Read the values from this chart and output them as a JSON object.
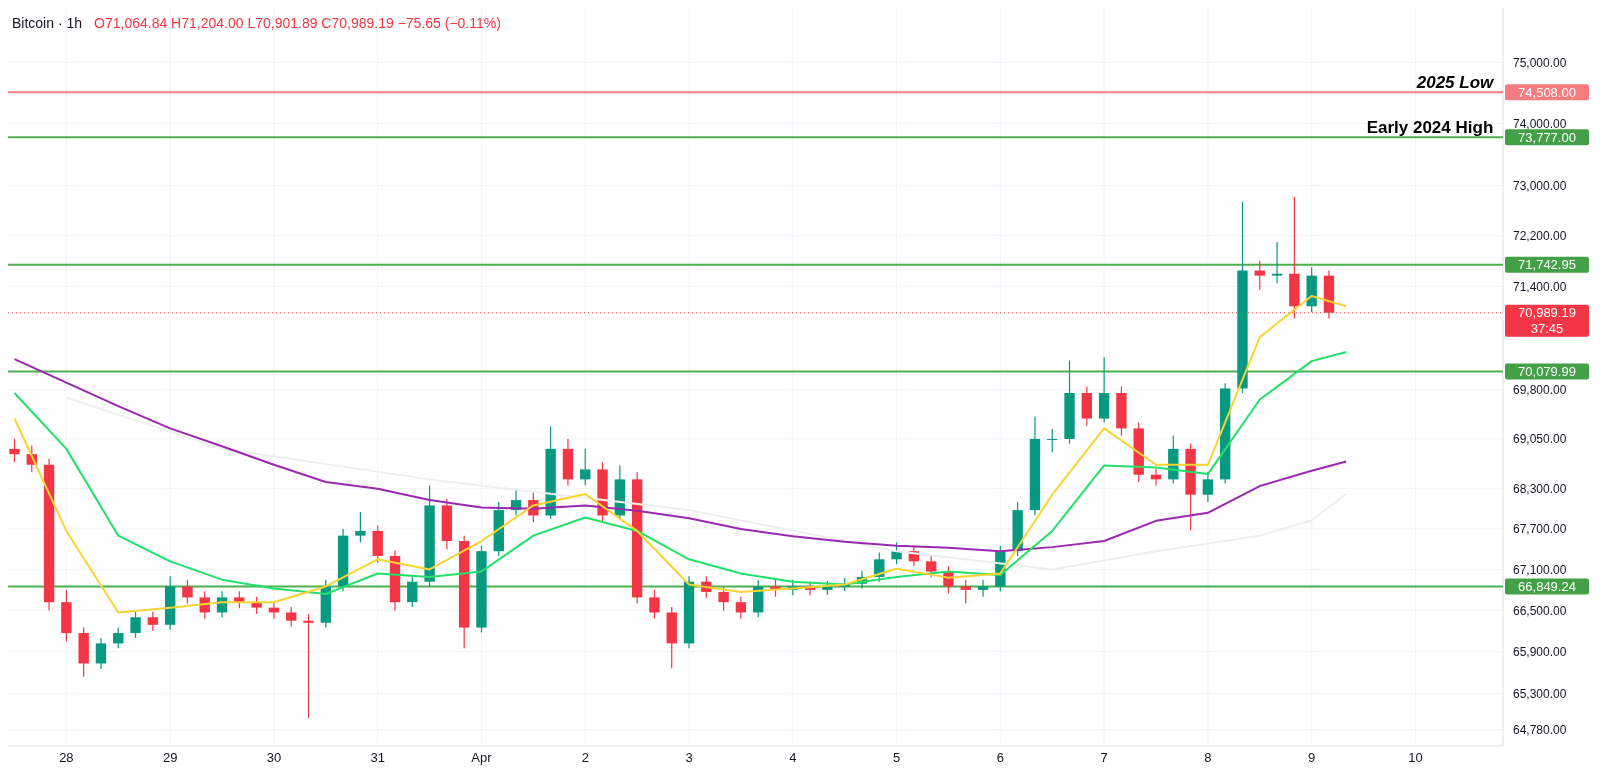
{
  "chart_data": {
    "type": "candlestick",
    "title": "Bitcoin · 1h",
    "subtitle": "O71,064.84 H71,204.00 L70,901.89 C70,989.19 −75.65 (−0.11%)",
    "xlim": [
      "--03-27T10:30",
      "--04-10T20:15"
    ],
    "xticks": [
      {
        "value": "--03-28",
        "label": "28"
      },
      {
        "value": "--03-29",
        "label": "29"
      },
      {
        "value": "--03-30",
        "label": "30"
      },
      {
        "value": "--03-31",
        "label": "31"
      },
      {
        "value": "--04-01",
        "label": "Apr"
      },
      {
        "value": "--04-02",
        "label": "2"
      },
      {
        "value": "--04-03",
        "label": "3"
      },
      {
        "value": "--04-04",
        "label": "4"
      },
      {
        "value": "--04-05",
        "label": "5"
      },
      {
        "value": "--04-06",
        "label": "6"
      },
      {
        "value": "--04-07",
        "label": "7"
      },
      {
        "value": "--04-08",
        "label": "8"
      },
      {
        "value": "--04-09",
        "label": "9"
      },
      {
        "value": "--04-10",
        "label": "10"
      }
    ],
    "ylim": [
      64550,
      75900
    ],
    "log": true,
    "grid": true,
    "yticks": [
      {
        "value": 64780,
        "label": "64,780.00"
      },
      {
        "value": 65300,
        "label": "65,300.00"
      },
      {
        "value": 65900,
        "label": "65,900.00"
      },
      {
        "value": 66500,
        "label": "66,500.00"
      },
      {
        "value": 67100,
        "label": "67,100.00"
      },
      {
        "value": 67700,
        "label": "67,700.00"
      },
      {
        "value": 68300,
        "label": "68,300.00"
      },
      {
        "value": 69050,
        "label": "69,050.00"
      },
      {
        "value": 69800,
        "label": "69,800.00"
      },
      {
        "value": 71400,
        "label": "71,400.00"
      },
      {
        "value": 72200,
        "label": "72,200.00"
      },
      {
        "value": 73000,
        "label": "73,000.00"
      },
      {
        "value": 74000,
        "label": "74,000.00"
      },
      {
        "value": 75000,
        "label": "75,000.00"
      }
    ],
    "series": [
      {
        "x": [
          "--03-27T12:00",
          "--03-27T16:00",
          "--03-27T20:00",
          "--03-28T00:00",
          "--03-28T04:00",
          "--03-28T08:00",
          "--03-28T12:00",
          "--03-28T16:00",
          "--03-28T20:00",
          "--03-29T00:00",
          "--03-29T04:00",
          "--03-29T08:00",
          "--03-29T12:00",
          "--03-29T16:00",
          "--03-29T20:00",
          "--03-30T00:00",
          "--03-30T04:00",
          "--03-30T08:00",
          "--03-30T12:00",
          "--03-30T16:00",
          "--03-30T20:00",
          "--03-31T00:00",
          "--03-31T04:00",
          "--03-31T08:00",
          "--03-31T12:00",
          "--03-31T16:00",
          "--03-31T20:00",
          "--04-01T00:00",
          "--04-01T04:00",
          "--04-01T08:00",
          "--04-01T12:00",
          "--04-01T16:00",
          "--04-01T20:00",
          "--04-02T00:00",
          "--04-02T04:00",
          "--04-02T08:00",
          "--04-02T12:00",
          "--04-02T16:00",
          "--04-02T20:00",
          "--04-03T00:00",
          "--04-03T04:00",
          "--04-03T08:00",
          "--04-03T12:00",
          "--04-03T16:00",
          "--04-03T20:00",
          "--04-04T00:00",
          "--04-04T04:00",
          "--04-04T08:00",
          "--04-04T12:00",
          "--04-04T16:00",
          "--04-04T20:00",
          "--04-05T00:00",
          "--04-05T04:00",
          "--04-05T08:00",
          "--04-05T12:00",
          "--04-05T16:00",
          "--04-05T20:00",
          "--04-06T00:00",
          "--04-06T04:00",
          "--04-06T08:00",
          "--04-06T12:00",
          "--04-06T16:00",
          "--04-06T20:00",
          "--04-07T00:00",
          "--04-07T04:00",
          "--04-07T08:00",
          "--04-07T12:00",
          "--04-07T16:00",
          "--04-07T20:00",
          "--04-08T00:00",
          "--04-08T04:00",
          "--04-08T08:00",
          "--04-08T12:00",
          "--04-08T16:00",
          "--04-08T20:00",
          "--04-09T00:00",
          "--04-09T04:00"
        ],
        "ohlc": [
          [
            68900,
            69050,
            68700,
            68820
          ],
          [
            68820,
            68950,
            68550,
            68660
          ],
          [
            68660,
            68750,
            66500,
            66620
          ],
          [
            66620,
            66800,
            66050,
            66170
          ],
          [
            66170,
            66250,
            65540,
            65730
          ],
          [
            65730,
            66100,
            65650,
            66020
          ],
          [
            66020,
            66250,
            65950,
            66170
          ],
          [
            66170,
            66480,
            66100,
            66400
          ],
          [
            66400,
            66480,
            66200,
            66290
          ],
          [
            66290,
            67000,
            66220,
            66850
          ],
          [
            66850,
            66950,
            66600,
            66690
          ],
          [
            66690,
            66780,
            66380,
            66470
          ],
          [
            66470,
            66780,
            66400,
            66690
          ],
          [
            66690,
            66780,
            66530,
            66620
          ],
          [
            66620,
            66700,
            66450,
            66540
          ],
          [
            66540,
            66620,
            66380,
            66470
          ],
          [
            66470,
            66550,
            66260,
            66350
          ],
          [
            66350,
            66450,
            64950,
            66320
          ],
          [
            66320,
            66950,
            66250,
            66850
          ],
          [
            66850,
            67700,
            66780,
            67600
          ],
          [
            67600,
            67950,
            67500,
            67670
          ],
          [
            67670,
            67750,
            67200,
            67300
          ],
          [
            67300,
            67380,
            66500,
            66620
          ],
          [
            66620,
            67000,
            66550,
            66920
          ],
          [
            66920,
            68350,
            66850,
            68050
          ],
          [
            68050,
            68150,
            67400,
            67520
          ],
          [
            67520,
            67600,
            65950,
            66250
          ],
          [
            66250,
            67450,
            66180,
            67370
          ],
          [
            67370,
            68100,
            67300,
            67980
          ],
          [
            67980,
            68300,
            67900,
            68130
          ],
          [
            68130,
            68250,
            67800,
            67900
          ],
          [
            67900,
            69240,
            67850,
            68900
          ],
          [
            68900,
            69050,
            68350,
            68440
          ],
          [
            68440,
            68900,
            68350,
            68590
          ],
          [
            68590,
            68700,
            67800,
            67900
          ],
          [
            67900,
            68650,
            67850,
            68440
          ],
          [
            68440,
            68550,
            66600,
            66690
          ],
          [
            66690,
            66800,
            66380,
            66470
          ],
          [
            66470,
            66550,
            65660,
            66020
          ],
          [
            66020,
            67000,
            65950,
            66920
          ],
          [
            66920,
            67000,
            66680,
            66770
          ],
          [
            66770,
            66850,
            66500,
            66620
          ],
          [
            66620,
            66700,
            66380,
            66470
          ],
          [
            66470,
            66950,
            66400,
            66850
          ],
          [
            66850,
            66950,
            66700,
            66800
          ],
          [
            66800,
            66950,
            66720,
            66850
          ],
          [
            66850,
            66920,
            66720,
            66800
          ],
          [
            66800,
            66930,
            66730,
            66850
          ],
          [
            66850,
            66980,
            66780,
            66890
          ],
          [
            66890,
            67080,
            66820,
            66990
          ],
          [
            66990,
            67350,
            66920,
            67250
          ],
          [
            67250,
            67500,
            67180,
            67370
          ],
          [
            67370,
            67450,
            67150,
            67220
          ],
          [
            67220,
            67300,
            66990,
            67070
          ],
          [
            67070,
            67150,
            66750,
            66850
          ],
          [
            66850,
            66950,
            66600,
            66800
          ],
          [
            66800,
            66950,
            66700,
            66850
          ],
          [
            66850,
            67450,
            66780,
            67370
          ],
          [
            67370,
            68100,
            67300,
            67980
          ],
          [
            67980,
            69390,
            67900,
            69050
          ],
          [
            69050,
            69200,
            68850,
            69050
          ],
          [
            69050,
            70250,
            68980,
            69750
          ],
          [
            69750,
            69850,
            69250,
            69360
          ],
          [
            69360,
            70300,
            69300,
            69750
          ],
          [
            69750,
            69850,
            69100,
            69210
          ],
          [
            69210,
            69300,
            68400,
            68510
          ],
          [
            68510,
            68600,
            68350,
            68440
          ],
          [
            68440,
            69100,
            68380,
            68900
          ],
          [
            68900,
            68980,
            67680,
            68210
          ],
          [
            68210,
            68550,
            68100,
            68440
          ],
          [
            68440,
            69900,
            68380,
            69820
          ],
          [
            69820,
            72740,
            69750,
            71650
          ],
          [
            71650,
            71800,
            71350,
            71570
          ],
          [
            71570,
            72100,
            71450,
            71600
          ],
          [
            71600,
            72820,
            70900,
            71090
          ],
          [
            71090,
            71700,
            71000,
            71570
          ],
          [
            71570,
            71650,
            70900,
            70990
          ]
        ]
      },
      {
        "type": "line",
        "color": "#eeeeee",
        "x": [
          "--03-28T00:00",
          "--03-29T12:00",
          "--03-31T12:00",
          "--04-03T00:00",
          "--04-05T00:00",
          "--04-06T12:00",
          "--04-07T12:00",
          "--04-08T12:00",
          "--04-09T00:00",
          "--04-09T08:00"
        ],
        "values": [
          69680,
          68900,
          68440,
          67980,
          67370,
          67100,
          67370,
          67600,
          67830,
          68220
        ]
      },
      {
        "type": "line",
        "color": "#9c27b0",
        "x": [
          "--03-27T12:00",
          "--03-28T00:00",
          "--03-28T12:00",
          "--03-29T00:00",
          "--03-29T12:00",
          "--03-30T00:00",
          "--03-30T12:00",
          "--03-31T00:00",
          "--03-31T12:00",
          "--04-01T00:00",
          "--04-01T12:00",
          "--04-02T00:00",
          "--04-02T12:00",
          "--04-03T00:00",
          "--04-03T12:00",
          "--04-04T00:00",
          "--04-04T12:00",
          "--04-05T00:00",
          "--04-05T12:00",
          "--04-06T00:00",
          "--04-06T12:00",
          "--04-07T00:00",
          "--04-07T12:00",
          "--04-08T00:00",
          "--04-08T12:00",
          "--04-09T00:00",
          "--04-09T08:00"
        ],
        "values": [
          70270,
          69910,
          69550,
          69210,
          68940,
          68660,
          68400,
          68300,
          68130,
          68020,
          68000,
          68050,
          67970,
          67860,
          67700,
          67590,
          67510,
          67450,
          67420,
          67370,
          67430,
          67520,
          67820,
          67940,
          68340,
          68570,
          68710
        ]
      },
      {
        "type": "line",
        "color": "#22e06a",
        "x": [
          "--03-27T12:00",
          "--03-28T00:00",
          "--03-28T12:00",
          "--03-29T00:00",
          "--03-29T12:00",
          "--03-30T00:00",
          "--03-30T12:00",
          "--03-31T00:00",
          "--03-31T12:00",
          "--04-01T00:00",
          "--04-01T12:00",
          "--04-02T00:00",
          "--04-02T12:00",
          "--04-03T00:00",
          "--04-03T12:00",
          "--04-04T00:00",
          "--04-04T12:00",
          "--04-05T00:00",
          "--04-05T12:00",
          "--04-06T00:00",
          "--04-06T12:00",
          "--04-07T00:00",
          "--04-07T12:00",
          "--04-08T00:00",
          "--04-08T12:00",
          "--04-09T00:00",
          "--04-09T08:00"
        ],
        "values": [
          69750,
          68900,
          67600,
          67220,
          66950,
          66820,
          66740,
          67040,
          66990,
          67070,
          67600,
          67870,
          67670,
          67250,
          67040,
          66920,
          66880,
          66990,
          67070,
          67020,
          67670,
          68650,
          68620,
          68520,
          69650,
          70240,
          70380
        ]
      },
      {
        "type": "line",
        "color": "#f7d432",
        "x": [
          "--03-27T12:00",
          "--03-28T00:00",
          "--03-28T12:00",
          "--03-29T00:00",
          "--03-29T12:00",
          "--03-30T00:00",
          "--03-30T12:00",
          "--03-31T00:00",
          "--03-31T12:00",
          "--04-01T00:00",
          "--04-01T12:00",
          "--04-02T00:00",
          "--04-02T12:00",
          "--04-03T00:00",
          "--04-03T12:00",
          "--04-04T00:00",
          "--04-04T12:00",
          "--04-05T00:00",
          "--04-05T12:00",
          "--04-06T00:00",
          "--04-06T12:00",
          "--04-07T00:00",
          "--04-07T12:00",
          "--04-08T00:00",
          "--04-08T12:00",
          "--04-09T00:00",
          "--04-09T08:00"
        ],
        "values": [
          69360,
          67670,
          66470,
          66540,
          66620,
          66620,
          66850,
          67250,
          67100,
          67520,
          68050,
          68220,
          67670,
          66880,
          66770,
          66820,
          66880,
          67110,
          66980,
          67040,
          68210,
          69210,
          68660,
          68660,
          70610,
          71250,
          71090
        ]
      }
    ],
    "ref_lines": [
      {
        "axis": "y",
        "value": 74508,
        "label": "74,508.00",
        "color": "#f77c80"
      },
      {
        "axis": "y",
        "value": 73777,
        "label": "73,777.00",
        "color": "#4caf50"
      },
      {
        "axis": "y",
        "value": 71742.95,
        "label": "71,742.95",
        "color": "#4caf50"
      },
      {
        "axis": "y",
        "value": 70079.99,
        "label": "70,079.99",
        "color": "#4caf50"
      },
      {
        "axis": "y",
        "value": 66849.24,
        "label": "66,849.24",
        "color": "#4caf50"
      },
      {
        "axis": "y",
        "value": 70989.19,
        "label": "70,989.19",
        "color": "#f23645",
        "line_style": "dotted"
      }
    ],
    "annotations": [
      {
        "text": "2025 Low",
        "x": "--04-10T18:00",
        "y": 74508
      },
      {
        "text": "Early 2024 High",
        "x": "--04-10T18:00",
        "y": 73777
      },
      "37:45"
    ]
  }
}
